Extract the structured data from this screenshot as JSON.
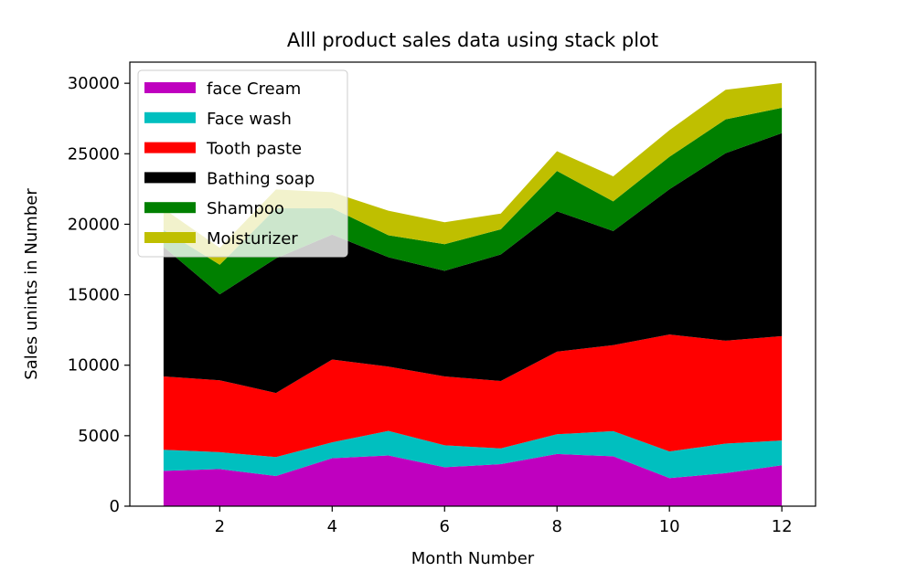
{
  "chart_data": {
    "type": "area",
    "stacked": true,
    "title": "Alll product sales data using stack plot",
    "xlabel": "Month Number",
    "ylabel": "Sales unints in Number",
    "xlim": [
      0.4,
      12.6
    ],
    "ylim": [
      0,
      31500
    ],
    "xticks": [
      2,
      4,
      6,
      8,
      10,
      12
    ],
    "yticks": [
      0,
      5000,
      10000,
      15000,
      20000,
      25000,
      30000
    ],
    "grid": false,
    "legend_position": "upper-left",
    "x": [
      1,
      2,
      3,
      4,
      5,
      6,
      7,
      8,
      9,
      10,
      11,
      12
    ],
    "series": [
      {
        "name": "face Cream",
        "color": "#bf00bf",
        "values": [
          2500,
          2630,
          2140,
          3400,
          3600,
          2760,
          2980,
          3700,
          3540,
          1990,
          2340,
          2900
        ]
      },
      {
        "name": "Face wash",
        "color": "#00bfbf",
        "values": [
          1500,
          1200,
          1340,
          1130,
          1740,
          1555,
          1120,
          1400,
          1780,
          1890,
          2100,
          1760
        ]
      },
      {
        "name": "Tooth paste",
        "color": "#ff0000",
        "values": [
          5200,
          5100,
          4550,
          5870,
          4560,
          4890,
          4780,
          5860,
          6100,
          8300,
          7300,
          7400
        ]
      },
      {
        "name": "Bathing soap",
        "color": "#000000",
        "values": [
          9200,
          6100,
          9550,
          8870,
          7760,
          7490,
          8980,
          9960,
          8100,
          10300,
          13300,
          14400
        ]
      },
      {
        "name": "Shampoo",
        "color": "#008000",
        "values": [
          1200,
          2100,
          3550,
          1870,
          1560,
          1890,
          1780,
          2860,
          2100,
          2300,
          2400,
          1800
        ]
      },
      {
        "name": "Moisturizer",
        "color": "#bfbf00",
        "values": [
          1500,
          1200,
          1340,
          1130,
          1740,
          1555,
          1120,
          1400,
          1780,
          1890,
          2100,
          1760
        ]
      }
    ]
  }
}
